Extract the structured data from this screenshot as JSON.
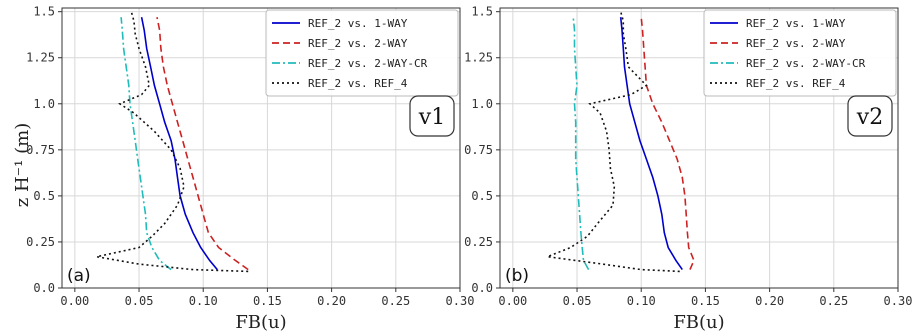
{
  "figure": {
    "ylabel": "z H⁻¹  (m)",
    "xlabel": "FB(u)"
  },
  "chart_data": [
    {
      "type": "line",
      "panel_label": "(a)",
      "version_label": "v1",
      "xlabel": "FB(u)",
      "ylabel": "z H⁻¹  (m)",
      "xlim": [
        -0.01,
        0.3
      ],
      "ylim": [
        0.0,
        1.52
      ],
      "xticks": [
        0.0,
        0.05,
        0.1,
        0.15,
        0.2,
        0.25,
        0.3
      ],
      "xtick_labels": [
        "0.00",
        "0.05",
        "0.10",
        "0.15",
        "0.20",
        "0.25",
        "0.30"
      ],
      "yticks": [
        0.0,
        0.25,
        0.5,
        0.75,
        1.0,
        1.25,
        1.5
      ],
      "ytick_labels": [
        "0.0",
        "0.25",
        "0.5",
        "0.75",
        "1.0",
        "1.25",
        "1.5"
      ],
      "grid": true,
      "legend_position": "top-right",
      "series": [
        {
          "name": "REF_2 vs. 1-WAY",
          "color": "#0000cc",
          "dash": "solid",
          "x": [
            0.111,
            0.105,
            0.098,
            0.092,
            0.086,
            0.082,
            0.08,
            0.078,
            0.075,
            0.07,
            0.066,
            0.062,
            0.059,
            0.056,
            0.054,
            0.052
          ],
          "y": [
            0.1,
            0.15,
            0.22,
            0.3,
            0.4,
            0.5,
            0.6,
            0.7,
            0.8,
            0.9,
            1.0,
            1.1,
            1.2,
            1.3,
            1.4,
            1.47
          ]
        },
        {
          "name": "REF_2 vs. 2-WAY",
          "color": "#cc2222",
          "dash": "dashed",
          "x": [
            0.135,
            0.125,
            0.112,
            0.104,
            0.1,
            0.096,
            0.092,
            0.088,
            0.084,
            0.08,
            0.076,
            0.072,
            0.069,
            0.067,
            0.066,
            0.064
          ],
          "y": [
            0.1,
            0.15,
            0.22,
            0.3,
            0.4,
            0.5,
            0.6,
            0.7,
            0.8,
            0.9,
            1.0,
            1.1,
            1.2,
            1.3,
            1.4,
            1.47
          ]
        },
        {
          "name": "REF_2 vs. 2-WAY-CR",
          "color": "#22bbbb",
          "dash": "dashdot",
          "x": [
            0.075,
            0.066,
            0.06,
            0.056,
            0.055,
            0.053,
            0.051,
            0.049,
            0.047,
            0.045,
            0.043,
            0.042,
            0.04,
            0.038,
            0.037,
            0.036
          ],
          "y": [
            0.1,
            0.15,
            0.22,
            0.3,
            0.4,
            0.5,
            0.6,
            0.7,
            0.8,
            0.9,
            1.0,
            1.1,
            1.2,
            1.3,
            1.4,
            1.47
          ]
        },
        {
          "name": "REF_2 vs. REF_4",
          "color": "#111111",
          "dash": "dotted",
          "x": [
            0.135,
            0.092,
            0.05,
            0.017,
            0.05,
            0.06,
            0.07,
            0.08,
            0.085,
            0.082,
            0.075,
            0.062,
            0.046,
            0.035,
            0.052,
            0.058,
            0.055,
            0.05,
            0.047,
            0.046,
            0.044
          ],
          "y": [
            0.09,
            0.1,
            0.13,
            0.17,
            0.22,
            0.28,
            0.35,
            0.45,
            0.55,
            0.65,
            0.75,
            0.85,
            0.95,
            1.0,
            1.05,
            1.1,
            1.2,
            1.3,
            1.38,
            1.45,
            1.5
          ]
        }
      ]
    },
    {
      "type": "line",
      "panel_label": "(b)",
      "version_label": "v2",
      "xlabel": "FB(u)",
      "ylabel": "",
      "xlim": [
        -0.01,
        0.3
      ],
      "ylim": [
        0.0,
        1.52
      ],
      "xticks": [
        0.0,
        0.05,
        0.1,
        0.15,
        0.2,
        0.25,
        0.3
      ],
      "xtick_labels": [
        "0.00",
        "0.05",
        "0.10",
        "0.15",
        "0.20",
        "0.25",
        "0.30"
      ],
      "yticks": [
        0.0,
        0.25,
        0.5,
        0.75,
        1.0,
        1.25,
        1.5
      ],
      "ytick_labels": [
        "0.0",
        "0.25",
        "0.5",
        "0.75",
        "1.0",
        "1.25",
        "1.5"
      ],
      "grid": true,
      "legend_position": "top-right",
      "series": [
        {
          "name": "REF_2 vs. 1-WAY",
          "color": "#0000cc",
          "dash": "solid",
          "x": [
            0.132,
            0.127,
            0.121,
            0.118,
            0.116,
            0.113,
            0.109,
            0.104,
            0.099,
            0.095,
            0.091,
            0.089,
            0.087,
            0.086,
            0.085,
            0.084
          ],
          "y": [
            0.1,
            0.15,
            0.22,
            0.3,
            0.4,
            0.5,
            0.6,
            0.7,
            0.8,
            0.9,
            1.0,
            1.1,
            1.2,
            1.3,
            1.4,
            1.47
          ]
        },
        {
          "name": "REF_2 vs. 2-WAY",
          "color": "#cc2222",
          "dash": "dashed",
          "x": [
            0.138,
            0.141,
            0.137,
            0.136,
            0.135,
            0.134,
            0.132,
            0.128,
            0.122,
            0.116,
            0.109,
            0.104,
            0.103,
            0.102,
            0.101,
            0.1
          ],
          "y": [
            0.1,
            0.15,
            0.22,
            0.3,
            0.4,
            0.5,
            0.6,
            0.7,
            0.8,
            0.9,
            1.0,
            1.1,
            1.2,
            1.3,
            1.4,
            1.47
          ]
        },
        {
          "name": "REF_2 vs. 2-WAY-CR",
          "color": "#22bbbb",
          "dash": "dashdot",
          "x": [
            0.059,
            0.055,
            0.054,
            0.053,
            0.052,
            0.051,
            0.05,
            0.049,
            0.049,
            0.049,
            0.048,
            0.05,
            0.049,
            0.048,
            0.048,
            0.047
          ],
          "y": [
            0.1,
            0.15,
            0.22,
            0.3,
            0.4,
            0.5,
            0.6,
            0.7,
            0.8,
            0.9,
            1.0,
            1.1,
            1.2,
            1.3,
            1.4,
            1.47
          ]
        },
        {
          "name": "REF_2 vs. REF_4",
          "color": "#111111",
          "dash": "dotted",
          "x": [
            0.13,
            0.1,
            0.07,
            0.027,
            0.045,
            0.058,
            0.066,
            0.078,
            0.079,
            0.076,
            0.075,
            0.073,
            0.068,
            0.06,
            0.092,
            0.104,
            0.09,
            0.088,
            0.086,
            0.086,
            0.084
          ],
          "y": [
            0.09,
            0.1,
            0.13,
            0.17,
            0.22,
            0.28,
            0.35,
            0.45,
            0.55,
            0.65,
            0.75,
            0.85,
            0.95,
            1.0,
            1.05,
            1.1,
            1.2,
            1.3,
            1.38,
            1.45,
            1.5
          ]
        }
      ]
    }
  ]
}
